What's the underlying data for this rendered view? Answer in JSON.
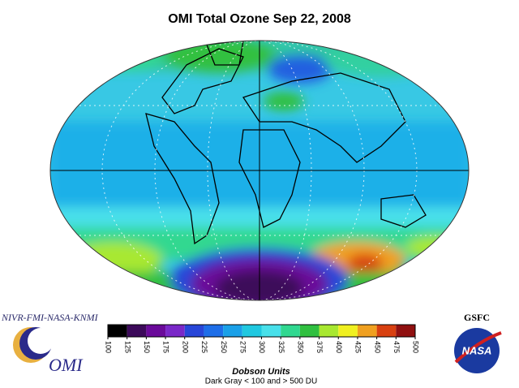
{
  "title": "OMI Total Ozone Sep 22, 2008",
  "colorbar": {
    "type": "colorbar",
    "ticks": [
      100,
      125,
      150,
      175,
      200,
      225,
      250,
      275,
      300,
      325,
      350,
      375,
      400,
      425,
      450,
      475,
      500
    ],
    "colors": [
      "#000000",
      "#3c0a5a",
      "#6a0a9a",
      "#7a28c8",
      "#2846d8",
      "#1e6ee8",
      "#1aa0e8",
      "#20c8e0",
      "#48e0ea",
      "#30d890",
      "#30c040",
      "#a8e830",
      "#f0f020",
      "#f0a020",
      "#d84010",
      "#901010"
    ],
    "label": "Dobson Units",
    "note": "Dark Gray < 100 and > 500 DU"
  },
  "logos": {
    "left_text": "NIVR-FMI-NASA-KNMI",
    "left_logo": "OMI",
    "right_text": "GSFC",
    "right_logo": "NASA"
  }
}
